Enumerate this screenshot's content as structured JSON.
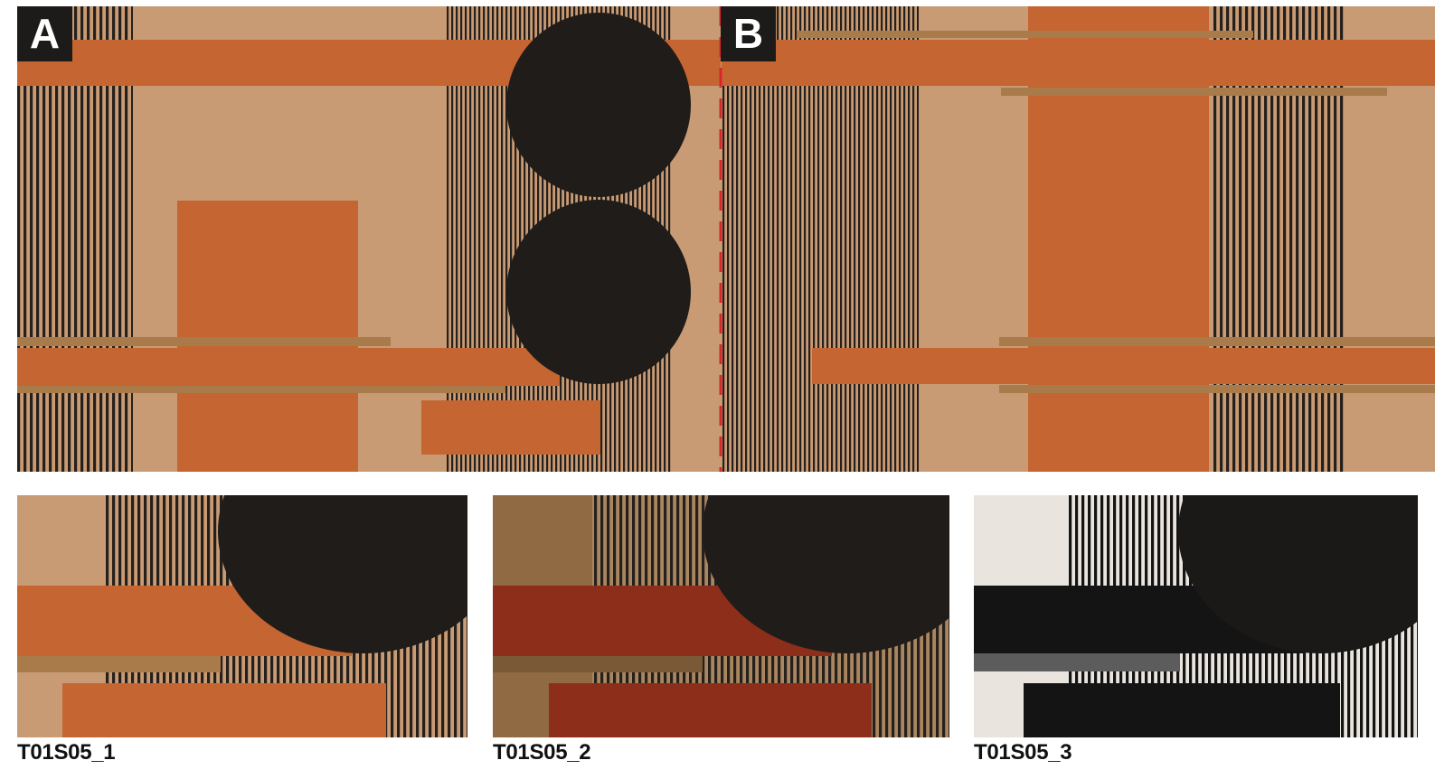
{
  "panel_labels": {
    "a": "A",
    "b": "B"
  },
  "variants": [
    {
      "code": "T01S05_1"
    },
    {
      "code": "T01S05_2"
    },
    {
      "code": "T01S05_3"
    }
  ],
  "colors": {
    "sand": "#c99b74",
    "terracotta": "#c46532",
    "ochre_strip": "#a97a4a",
    "charcoal": "#1f1c1a",
    "stripe_dark": "#26201c",
    "divider_red": "#d8262a",
    "variant2_red": "#8c2e1a",
    "variant2_brown": "#8f6a42",
    "variant3_cream": "#e9e5de",
    "variant3_black": "#151414",
    "variant3_grey": "#5c5c5c"
  }
}
